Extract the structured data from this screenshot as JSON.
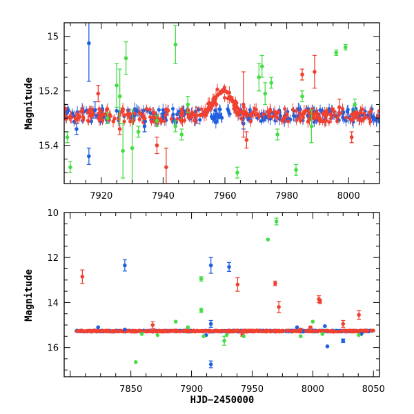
{
  "colors": {
    "blue": "#1f5fe0",
    "red": "#f04030",
    "green": "#44dd44",
    "frame": "#000000"
  },
  "chart_data": [
    {
      "type": "scatter",
      "title": "",
      "xlabel": "",
      "ylabel": "Magnitude",
      "xlim": [
        7908,
        8010
      ],
      "ylim": [
        15.54,
        14.95
      ],
      "y_inverted": true,
      "xticks": [
        7920,
        7940,
        7960,
        7980,
        8000
      ],
      "yticks": [
        15,
        15.2,
        15.4
      ],
      "yticklabels": [
        "15",
        "15.2",
        "15.4"
      ],
      "baseline": {
        "magnitude": 15.29,
        "x_range": [
          7908,
          8010
        ],
        "series": [
          "blue",
          "red"
        ]
      },
      "peak": {
        "x": 7959.5,
        "magnitude": 15.2,
        "halfwidth_days": 4.0,
        "series": "red"
      },
      "series": [
        {
          "color_key": "blue",
          "points": [
            {
              "x": 7916,
              "y": 15.025,
              "err": 0.14
            },
            {
              "x": 7916,
              "y": 15.44,
              "err": 0.03
            },
            {
              "x": 7912,
              "y": 15.34,
              "err": 0.02
            },
            {
              "x": 7918,
              "y": 15.27,
              "err": 0.03
            },
            {
              "x": 7934,
              "y": 15.33,
              "err": 0.02
            },
            {
              "x": 7966,
              "y": 15.32,
              "err": 0.02
            }
          ]
        },
        {
          "color_key": "red",
          "points": [
            {
              "x": 7919,
              "y": 15.21,
              "err": 0.03
            },
            {
              "x": 7926,
              "y": 15.34,
              "err": 0.02
            },
            {
              "x": 7938,
              "y": 15.4,
              "err": 0.03
            },
            {
              "x": 7941,
              "y": 15.48,
              "err": 0.07
            },
            {
              "x": 7951,
              "y": 15.29,
              "err": 0.03
            },
            {
              "x": 7966,
              "y": 15.25,
              "err": 0.12
            },
            {
              "x": 7967,
              "y": 15.38,
              "err": 0.03
            },
            {
              "x": 7985,
              "y": 15.14,
              "err": 0.02
            },
            {
              "x": 7989,
              "y": 15.13,
              "err": 0.06
            },
            {
              "x": 7997,
              "y": 15.26,
              "err": 0.03
            },
            {
              "x": 8001,
              "y": 15.37,
              "err": 0.02
            }
          ]
        },
        {
          "color_key": "green",
          "points": [
            {
              "x": 7909,
              "y": 15.37,
              "err": 0.02
            },
            {
              "x": 7910,
              "y": 15.48,
              "err": 0.02
            },
            {
              "x": 7922,
              "y": 15.3,
              "err": 0.02
            },
            {
              "x": 7925,
              "y": 15.18,
              "err": 0.08
            },
            {
              "x": 7926,
              "y": 15.22,
              "err": 0.1
            },
            {
              "x": 7927,
              "y": 15.42,
              "err": 0.1
            },
            {
              "x": 7928,
              "y": 15.08,
              "err": 0.06
            },
            {
              "x": 7930,
              "y": 15.41,
              "err": 0.14
            },
            {
              "x": 7944,
              "y": 15.03,
              "err": 0.07
            },
            {
              "x": 7944,
              "y": 15.33,
              "err": 0.02
            },
            {
              "x": 7946,
              "y": 15.36,
              "err": 0.02
            },
            {
              "x": 7964,
              "y": 15.5,
              "err": 0.02
            },
            {
              "x": 7971,
              "y": 15.15,
              "err": 0.05
            },
            {
              "x": 7972,
              "y": 15.11,
              "err": 0.04
            },
            {
              "x": 7973,
              "y": 15.21,
              "err": 0.04
            },
            {
              "x": 7975,
              "y": 15.17,
              "err": 0.02
            },
            {
              "x": 7977,
              "y": 15.36,
              "err": 0.02
            },
            {
              "x": 7983,
              "y": 15.49,
              "err": 0.02
            },
            {
              "x": 7985,
              "y": 15.22,
              "err": 0.02
            },
            {
              "x": 7988,
              "y": 15.33,
              "err": 0.06
            },
            {
              "x": 7996,
              "y": 15.06,
              "err": 0.01
            },
            {
              "x": 7999,
              "y": 15.04,
              "err": 0.01
            },
            {
              "x": 8002,
              "y": 15.25,
              "err": 0.02
            },
            {
              "x": 7948,
              "y": 15.25,
              "err": 0.03
            },
            {
              "x": 7938,
              "y": 15.31,
              "err": 0.02
            },
            {
              "x": 7932,
              "y": 15.35,
              "err": 0.02
            }
          ]
        }
      ]
    },
    {
      "type": "scatter",
      "title": "",
      "xlabel": "HJD−2450000",
      "ylabel": "Magnitude",
      "xlim": [
        7795,
        8055
      ],
      "ylim": [
        17.3,
        10.0
      ],
      "y_inverted": true,
      "xticks": [
        7850,
        7900,
        7950,
        8000,
        8050
      ],
      "yticks": [
        10,
        12,
        14,
        16
      ],
      "yticklabels": [
        "10",
        "12",
        "14",
        "16"
      ],
      "baseline": {
        "magnitude": 15.27,
        "x_range": [
          7805,
          8050
        ],
        "series": [
          "blue",
          "red"
        ]
      },
      "series": [
        {
          "color_key": "blue",
          "points": [
            {
              "x": 7845,
              "y": 12.35,
              "err": 0.25
            },
            {
              "x": 7916,
              "y": 12.35,
              "err": 0.35
            },
            {
              "x": 7931,
              "y": 12.42,
              "err": 0.2
            },
            {
              "x": 7916,
              "y": 16.75,
              "err": 0.15
            },
            {
              "x": 7916,
              "y": 14.95,
              "err": 0.15
            },
            {
              "x": 7823,
              "y": 15.1,
              "err": 0
            },
            {
              "x": 7845,
              "y": 15.2,
              "err": 0
            },
            {
              "x": 7912,
              "y": 15.45,
              "err": 0
            },
            {
              "x": 7987,
              "y": 15.1,
              "err": 0
            },
            {
              "x": 8010,
              "y": 15.05,
              "err": 0
            },
            {
              "x": 8012,
              "y": 15.95,
              "err": 0
            },
            {
              "x": 8025,
              "y": 15.7,
              "err": 0.08
            },
            {
              "x": 8040,
              "y": 15.4,
              "err": 0
            }
          ]
        },
        {
          "color_key": "red",
          "points": [
            {
              "x": 7810,
              "y": 12.85,
              "err": 0.3
            },
            {
              "x": 7868,
              "y": 15.0,
              "err": 0.15
            },
            {
              "x": 7938,
              "y": 13.2,
              "err": 0.3
            },
            {
              "x": 7969,
              "y": 13.15,
              "err": 0.1
            },
            {
              "x": 7972,
              "y": 14.2,
              "err": 0.25
            },
            {
              "x": 8005,
              "y": 13.85,
              "err": 0.15
            },
            {
              "x": 8006,
              "y": 13.95,
              "err": 0.1
            },
            {
              "x": 8025,
              "y": 14.95,
              "err": 0.15
            },
            {
              "x": 8038,
              "y": 14.55,
              "err": 0.2
            },
            {
              "x": 7990,
              "y": 15.2,
              "err": 0.05
            },
            {
              "x": 7942,
              "y": 15.45,
              "err": 0.05
            },
            {
              "x": 7998,
              "y": 15.1,
              "err": 0.05
            }
          ]
        },
        {
          "color_key": "green",
          "points": [
            {
              "x": 7854,
              "y": 16.65,
              "err": 0
            },
            {
              "x": 7872,
              "y": 15.45,
              "err": 0
            },
            {
              "x": 7887,
              "y": 14.85,
              "err": 0
            },
            {
              "x": 7908,
              "y": 12.95,
              "err": 0.1
            },
            {
              "x": 7908,
              "y": 14.35,
              "err": 0.1
            },
            {
              "x": 7910,
              "y": 15.5,
              "err": 0
            },
            {
              "x": 7927,
              "y": 15.7,
              "err": 0.2
            },
            {
              "x": 7929,
              "y": 15.45,
              "err": 0
            },
            {
              "x": 7943,
              "y": 15.5,
              "err": 0
            },
            {
              "x": 7963,
              "y": 11.2,
              "err": 0
            },
            {
              "x": 7970,
              "y": 10.4,
              "err": 0.15
            },
            {
              "x": 7990,
              "y": 15.5,
              "err": 0
            },
            {
              "x": 8000,
              "y": 14.85,
              "err": 0
            },
            {
              "x": 8008,
              "y": 15.4,
              "err": 0
            },
            {
              "x": 8038,
              "y": 15.45,
              "err": 0
            },
            {
              "x": 7897,
              "y": 15.1,
              "err": 0
            },
            {
              "x": 7859,
              "y": 15.4,
              "err": 0
            }
          ]
        }
      ]
    }
  ]
}
